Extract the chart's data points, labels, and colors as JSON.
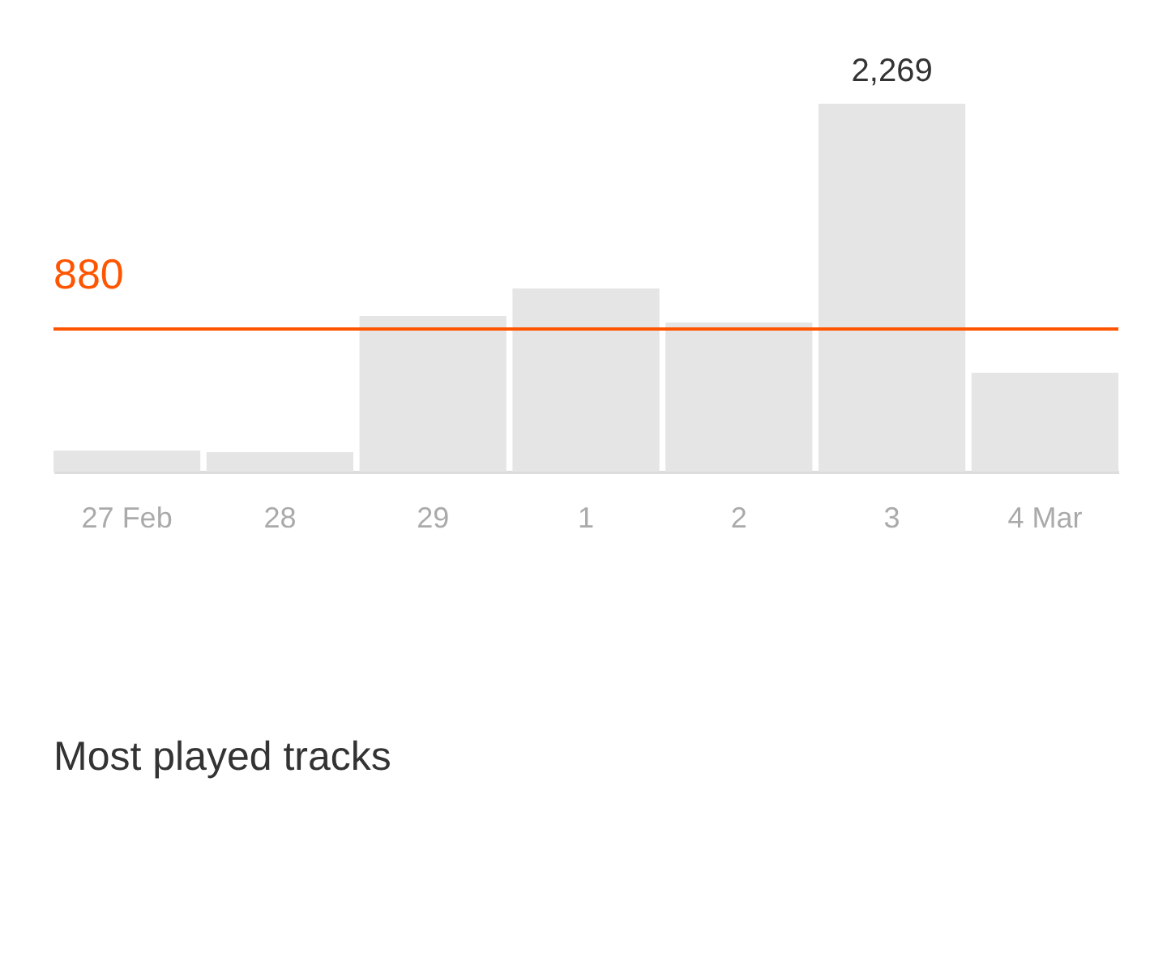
{
  "chart_data": {
    "type": "bar",
    "categories": [
      "27 Feb",
      "28",
      "29",
      "1",
      "2",
      "3",
      "4 Mar"
    ],
    "values": [
      130,
      120,
      960,
      1130,
      920,
      2269,
      610
    ],
    "color": "#e5e5e5",
    "ylim": [
      0,
      2269
    ],
    "tick_labels": "x",
    "value_labels": [
      null,
      null,
      null,
      null,
      null,
      "2,269",
      null
    ],
    "ref_lines": [
      {
        "axis": "y",
        "value": 880,
        "label": "880",
        "color": "#ff5500"
      }
    ],
    "annotations": [
      "Most played tracks"
    ]
  }
}
